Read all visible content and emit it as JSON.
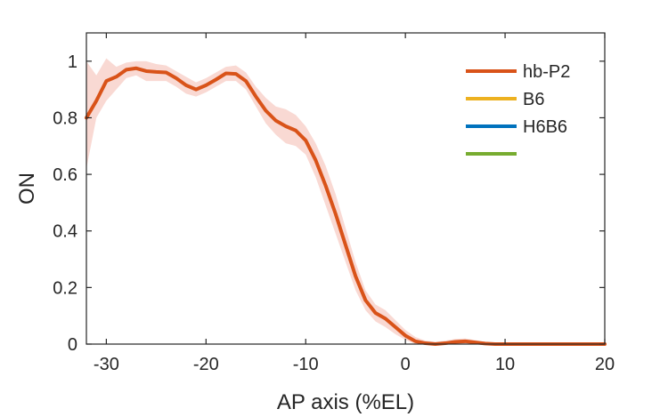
{
  "chart_data": {
    "type": "line",
    "xlabel": "AP axis (%EL)",
    "ylabel": "ON",
    "xlim": [
      -32,
      20
    ],
    "ylim": [
      0,
      1.1
    ],
    "xticks": [
      -30,
      -20,
      -10,
      0,
      10,
      20
    ],
    "yticks": [
      0,
      0.2,
      0.4,
      0.6,
      0.8,
      1
    ],
    "xtick_labels": [
      "-30",
      "-20",
      "-10",
      "0",
      "10",
      "20"
    ],
    "ytick_labels": [
      "0",
      "0.2",
      "0.4",
      "0.6",
      "0.8",
      "1"
    ],
    "grid": false,
    "legend_position": "top-right",
    "series": [
      {
        "name": "hb-P2",
        "color": "#D95319",
        "band_color": "#F9D9D3",
        "x": [
          -32,
          -31,
          -30,
          -29,
          -28,
          -27,
          -26,
          -25,
          -24,
          -23,
          -22,
          -21,
          -20,
          -19,
          -18,
          -17,
          -16,
          -15,
          -14,
          -13,
          -12,
          -11,
          -10,
          -9,
          -8,
          -7,
          -6,
          -5,
          -4,
          -3,
          -2,
          -1,
          0,
          1,
          2,
          3,
          4,
          5,
          6,
          7,
          8,
          9,
          10,
          11,
          12,
          13,
          14,
          15,
          16,
          17,
          18,
          19,
          20
        ],
        "y": [
          0.8,
          0.86,
          0.93,
          0.945,
          0.97,
          0.975,
          0.965,
          0.962,
          0.96,
          0.94,
          0.915,
          0.9,
          0.915,
          0.935,
          0.957,
          0.955,
          0.93,
          0.875,
          0.825,
          0.79,
          0.77,
          0.755,
          0.72,
          0.65,
          0.56,
          0.46,
          0.35,
          0.24,
          0.155,
          0.11,
          0.09,
          0.06,
          0.03,
          0.01,
          0.003,
          0.0,
          0.003,
          0.008,
          0.01,
          0.006,
          0.002,
          0.0,
          0.0,
          0.0,
          0.0,
          0.0,
          0.0,
          0.0,
          0.0,
          0.0,
          0.0,
          0.0,
          0.0
        ],
        "lower": [
          0.62,
          0.8,
          0.86,
          0.9,
          0.94,
          0.95,
          0.93,
          0.93,
          0.93,
          0.91,
          0.885,
          0.875,
          0.89,
          0.91,
          0.93,
          0.93,
          0.9,
          0.84,
          0.78,
          0.74,
          0.71,
          0.7,
          0.67,
          0.59,
          0.49,
          0.39,
          0.29,
          0.19,
          0.12,
          0.08,
          0.06,
          0.035,
          0.015,
          0.0,
          0.0,
          0.0,
          0.0,
          0.0,
          0.0,
          0.0,
          0.0,
          0.0,
          0.0,
          0.0,
          0.0,
          0.0,
          0.0,
          0.0,
          0.0,
          0.0,
          0.0,
          0.0,
          0.0
        ],
        "upper": [
          1.0,
          0.95,
          1.01,
          0.98,
          0.995,
          1.0,
          1.0,
          0.99,
          0.985,
          0.965,
          0.945,
          0.925,
          0.94,
          0.96,
          0.98,
          0.985,
          0.96,
          0.91,
          0.87,
          0.84,
          0.83,
          0.81,
          0.77,
          0.71,
          0.63,
          0.53,
          0.41,
          0.29,
          0.19,
          0.14,
          0.12,
          0.085,
          0.05,
          0.025,
          0.012,
          0.008,
          0.012,
          0.018,
          0.02,
          0.014,
          0.008,
          0.004,
          0.0,
          0.0,
          0.0,
          0.0,
          0.0,
          0.0,
          0.0,
          0.0,
          0.0,
          0.0,
          0.0
        ]
      },
      {
        "name": "B6",
        "color": "#EDB120",
        "x": [],
        "y": []
      },
      {
        "name": "H6B6",
        "color": "#0072BD",
        "x": [],
        "y": []
      },
      {
        "name": "",
        "color": "#77AC30",
        "x": [],
        "y": []
      }
    ]
  }
}
